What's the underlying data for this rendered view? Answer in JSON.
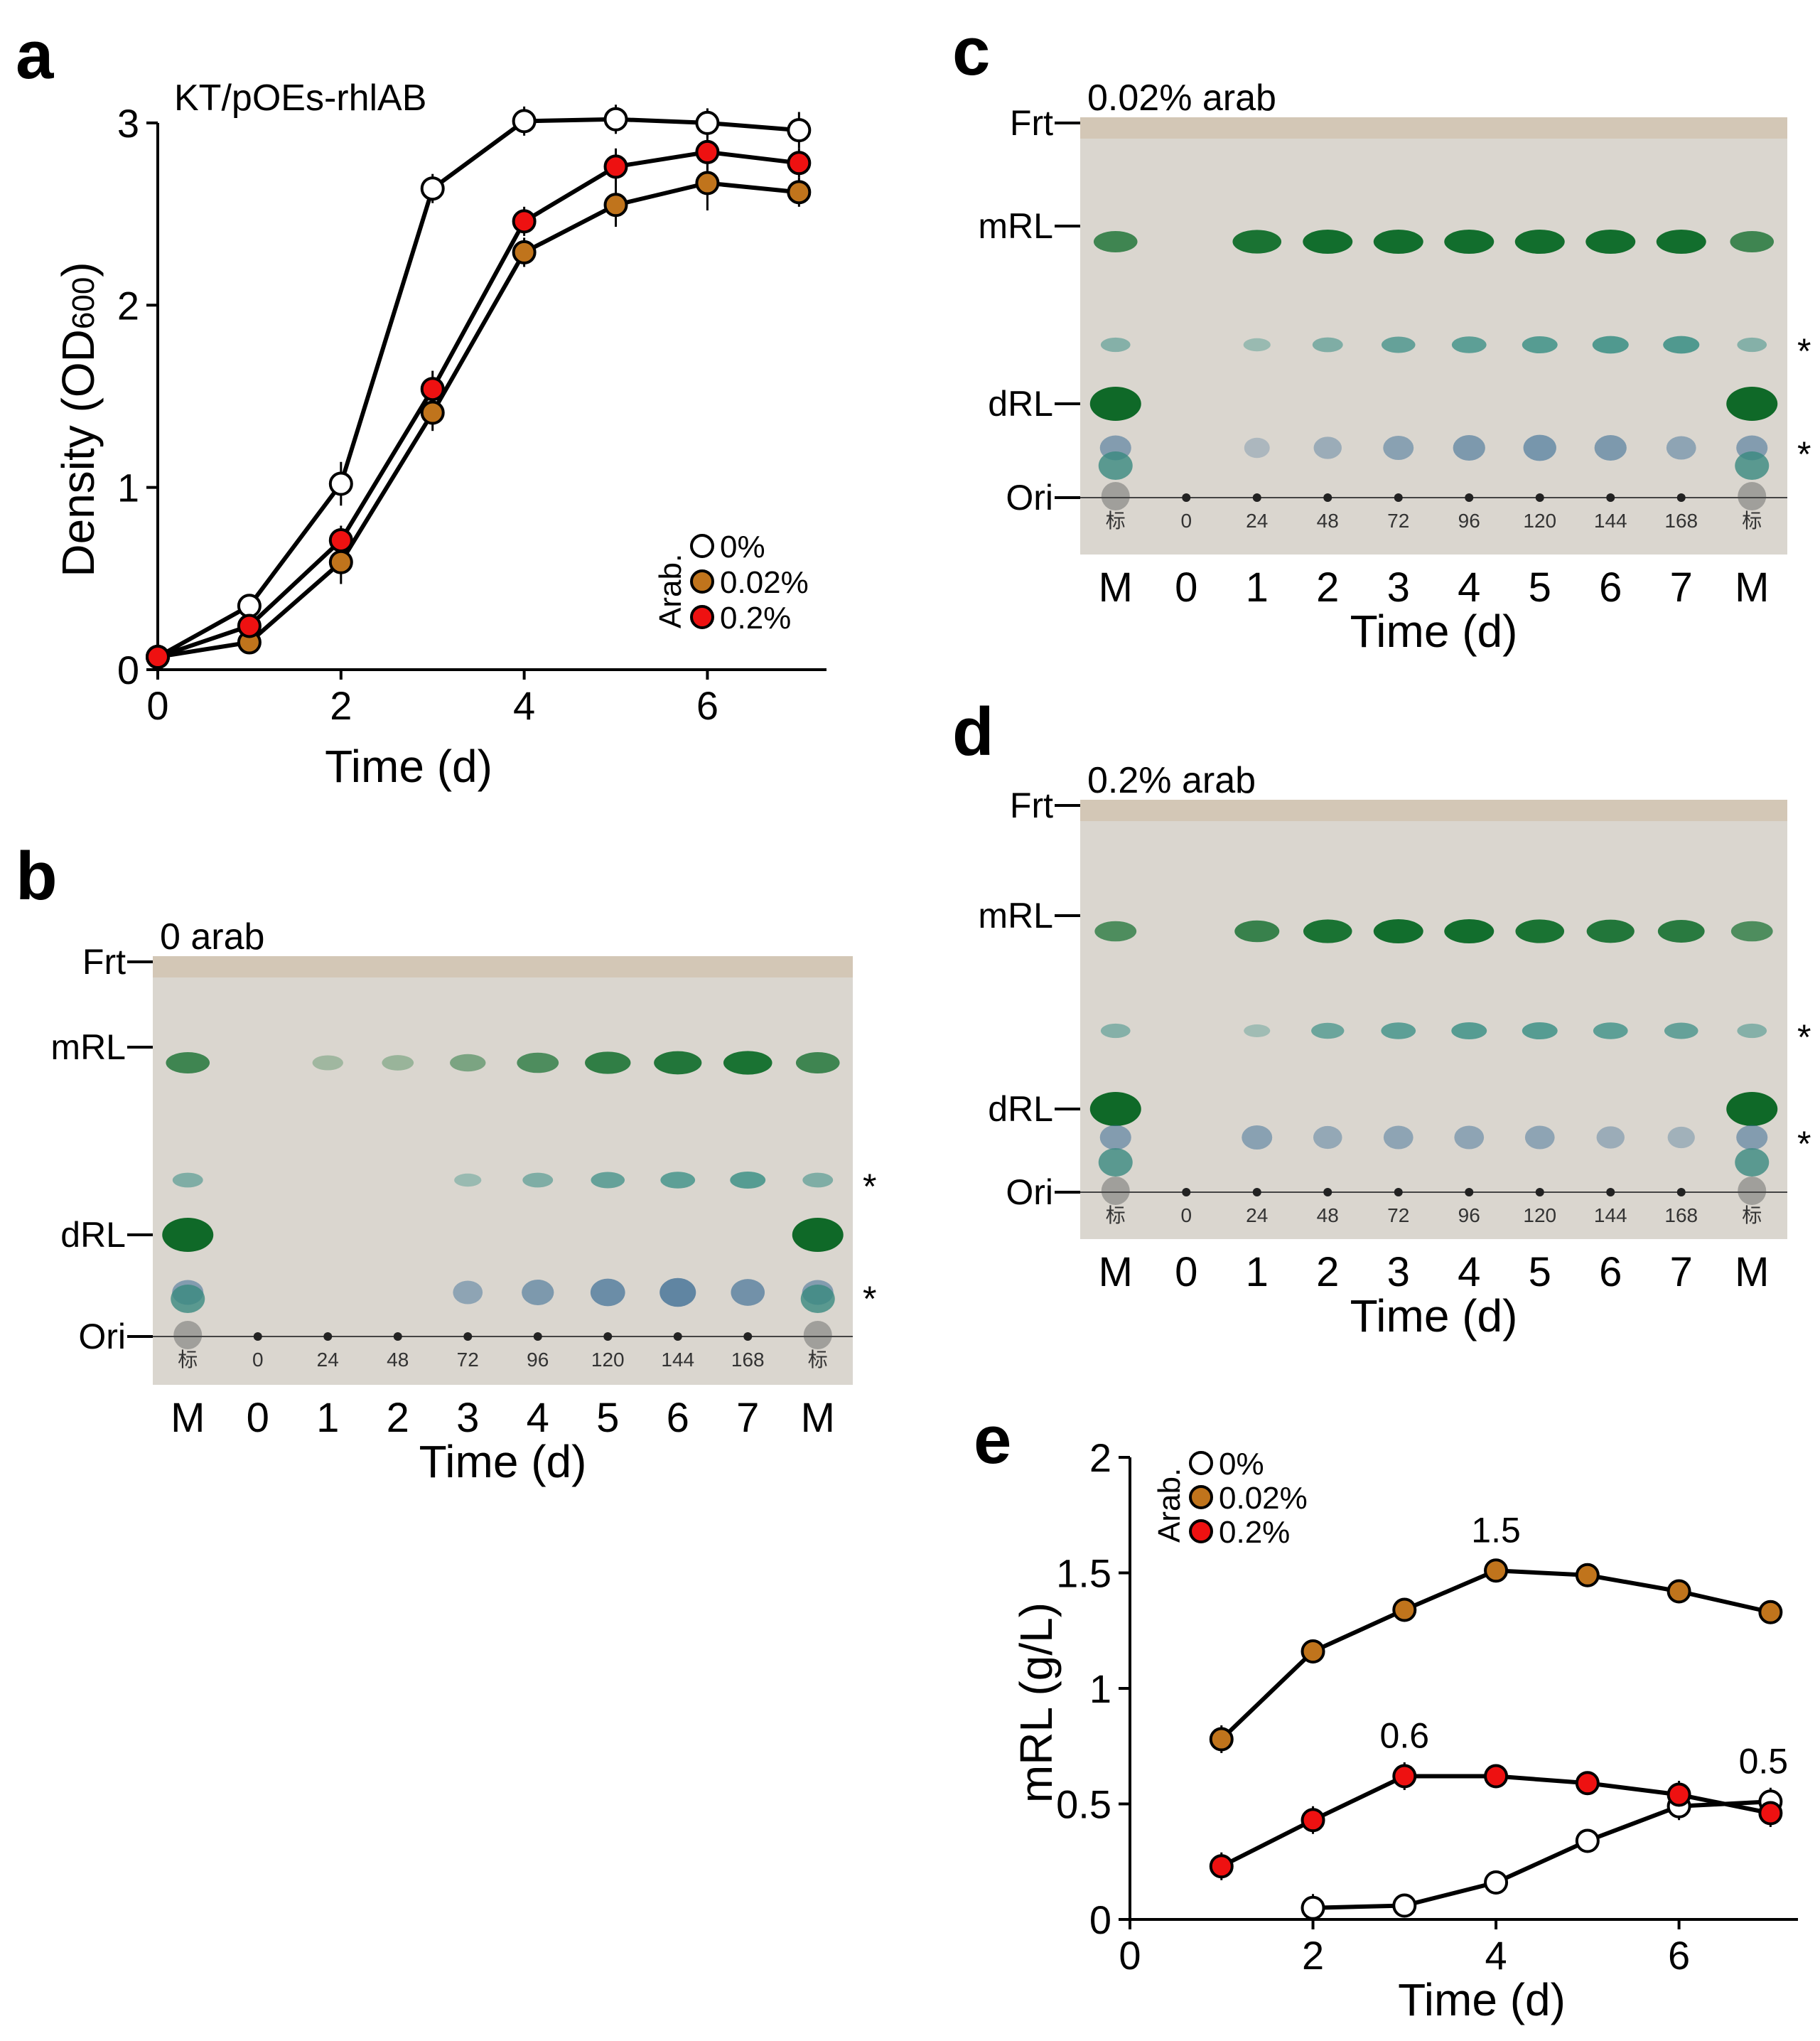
{
  "panel_letters": [
    "a",
    "b",
    "c",
    "d",
    "e"
  ],
  "chart_data": [
    {
      "panel": "a",
      "type": "line",
      "title": "KT/pOEs-rhlAB",
      "xlabel": "Time (d)",
      "ylabel": "Density (OD600)",
      "ylabel_main": "Density (OD",
      "ylabel_sub": "600",
      "ylabel_close": ")",
      "xlim": [
        0,
        7.3
      ],
      "ylim": [
        0,
        3.3
      ],
      "xticks": [
        0,
        2,
        4,
        6
      ],
      "yticks": [
        0,
        1,
        2,
        3
      ],
      "legend_title": "Arab.",
      "legend_position": "lower-right",
      "x": [
        0,
        1,
        2,
        3,
        4,
        5,
        6,
        7
      ],
      "series": [
        {
          "name": "0%",
          "color": "#ffffff",
          "values": [
            0.07,
            0.35,
            1.02,
            2.64,
            3.01,
            3.02,
            3.0,
            2.96
          ],
          "errors": [
            0.03,
            0.05,
            0.12,
            0.08,
            0.08,
            0.08,
            0.08,
            0.1
          ]
        },
        {
          "name": "0.02%",
          "color": "#c0741c",
          "values": [
            0.07,
            0.15,
            0.59,
            1.41,
            2.29,
            2.55,
            2.67,
            2.62
          ],
          "errors": [
            0.03,
            0.05,
            0.12,
            0.1,
            0.08,
            0.12,
            0.15,
            0.08
          ]
        },
        {
          "name": "0.2%",
          "color": "#ee1111",
          "values": [
            0.07,
            0.24,
            0.71,
            1.54,
            2.46,
            2.76,
            2.84,
            2.78
          ],
          "errors": [
            0.03,
            0.05,
            0.08,
            0.1,
            0.08,
            0.1,
            0.1,
            0.08
          ]
        }
      ]
    },
    {
      "panel": "e",
      "type": "line",
      "title": "",
      "xlabel": "Time (d)",
      "ylabel": "mRL (g/L)",
      "xlim": [
        0,
        7.3
      ],
      "ylim": [
        0,
        2
      ],
      "xticks": [
        0,
        2,
        4,
        6
      ],
      "yticks": [
        0,
        0.5,
        1,
        1.5,
        2
      ],
      "ytick_labels": [
        "0",
        "0.5",
        "1",
        "1.5",
        "2"
      ],
      "legend_title": "Arab.",
      "legend_position": "top-left",
      "series": [
        {
          "name": "0%",
          "color": "#ffffff",
          "x": [
            2,
            3,
            4,
            5,
            6,
            7
          ],
          "values": [
            0.05,
            0.06,
            0.16,
            0.34,
            0.49,
            0.51
          ],
          "errors": [
            0.06,
            0.05,
            0.05,
            0.05,
            0.06,
            0.06
          ]
        },
        {
          "name": "0.02%",
          "color": "#c0741c",
          "x": [
            1,
            2,
            3,
            4,
            5,
            6,
            7
          ],
          "values": [
            0.78,
            1.16,
            1.34,
            1.51,
            1.49,
            1.42,
            1.33
          ],
          "errors": [
            0.06,
            0.05,
            0.05,
            0.05,
            0.05,
            0.05,
            0.05
          ]
        },
        {
          "name": "0.2%",
          "color": "#ee1111",
          "x": [
            1,
            2,
            3,
            4,
            5,
            6,
            7
          ],
          "values": [
            0.23,
            0.43,
            0.62,
            0.62,
            0.59,
            0.54,
            0.46
          ],
          "errors": [
            0.06,
            0.06,
            0.06,
            0.05,
            0.05,
            0.06,
            0.06
          ]
        }
      ],
      "annotations": [
        {
          "text": "1.5",
          "x": 4,
          "y": 1.51
        },
        {
          "text": "0.6",
          "x": 3,
          "y": 0.62
        },
        {
          "text": "0.5",
          "x": 7,
          "y": 0.51
        }
      ]
    }
  ],
  "gels": [
    {
      "panel": "b",
      "title": "0 arab",
      "xlabel": "Time (d)",
      "lane_labels": [
        "M",
        "0",
        "1",
        "2",
        "3",
        "4",
        "5",
        "6",
        "7",
        "M"
      ],
      "band_labels": [
        "Frt",
        "mRL",
        "dRL",
        "Ori"
      ],
      "star_labels": [
        "*",
        "*"
      ],
      "lane_notes": [
        "标",
        "0",
        "24",
        "48",
        "72",
        "96",
        "120",
        "144",
        "168",
        "标"
      ],
      "band_intensity": {
        "mRL": [
          0.7,
          0.0,
          0.05,
          0.1,
          0.3,
          0.6,
          0.8,
          0.9,
          0.95,
          0.7
        ],
        "star1": [
          0.35,
          0.0,
          0.0,
          0.0,
          0.15,
          0.35,
          0.55,
          0.6,
          0.65,
          0.35
        ],
        "dRL": [
          1.0,
          0.0,
          0.0,
          0.0,
          0.0,
          0.0,
          0.0,
          0.0,
          0.0,
          1.0
        ],
        "star2": [
          0.4,
          0.0,
          0.0,
          0.0,
          0.3,
          0.45,
          0.6,
          0.7,
          0.55,
          0.4
        ]
      }
    },
    {
      "panel": "c",
      "title": "0.02% arab",
      "xlabel": "Time (d)",
      "lane_labels": [
        "M",
        "0",
        "1",
        "2",
        "3",
        "4",
        "5",
        "6",
        "7",
        "M"
      ],
      "band_labels": [
        "Frt",
        "mRL",
        "dRL",
        "Ori"
      ],
      "star_labels": [
        "*",
        "*"
      ],
      "lane_notes": [
        "标",
        "0",
        "24",
        "48",
        "72",
        "96",
        "120",
        "144",
        "168",
        "标"
      ],
      "band_intensity": {
        "mRL": [
          0.7,
          0.0,
          0.95,
          1.0,
          1.0,
          1.0,
          1.0,
          1.0,
          1.0,
          0.7
        ],
        "star1": [
          0.3,
          0.0,
          0.15,
          0.35,
          0.55,
          0.6,
          0.65,
          0.7,
          0.7,
          0.3
        ],
        "dRL": [
          1.0,
          0.0,
          0.0,
          0.0,
          0.0,
          0.0,
          0.0,
          0.0,
          0.0,
          1.0
        ],
        "star2": [
          0.4,
          0.0,
          0.05,
          0.2,
          0.35,
          0.45,
          0.5,
          0.45,
          0.3,
          0.4
        ]
      }
    },
    {
      "panel": "d",
      "title": "0.2% arab",
      "xlabel": "Time (d)",
      "lane_labels": [
        "M",
        "0",
        "1",
        "2",
        "3",
        "4",
        "5",
        "6",
        "7",
        "M"
      ],
      "band_labels": [
        "Frt",
        "mRL",
        "dRL",
        "Ori"
      ],
      "star_labels": [
        "*",
        "*"
      ],
      "lane_notes": [
        "标",
        "0",
        "24",
        "48",
        "72",
        "96",
        "120",
        "144",
        "168",
        "标"
      ],
      "band_intensity": {
        "mRL": [
          0.6,
          0.0,
          0.75,
          0.95,
          1.0,
          1.0,
          0.95,
          0.9,
          0.85,
          0.6
        ],
        "star1": [
          0.3,
          0.0,
          0.1,
          0.5,
          0.6,
          0.65,
          0.65,
          0.6,
          0.55,
          0.3
        ],
        "dRL": [
          1.0,
          0.0,
          0.0,
          0.0,
          0.0,
          0.0,
          0.0,
          0.0,
          0.0,
          1.0
        ],
        "star2": [
          0.4,
          0.0,
          0.35,
          0.25,
          0.3,
          0.3,
          0.3,
          0.2,
          0.15,
          0.4
        ]
      }
    }
  ]
}
